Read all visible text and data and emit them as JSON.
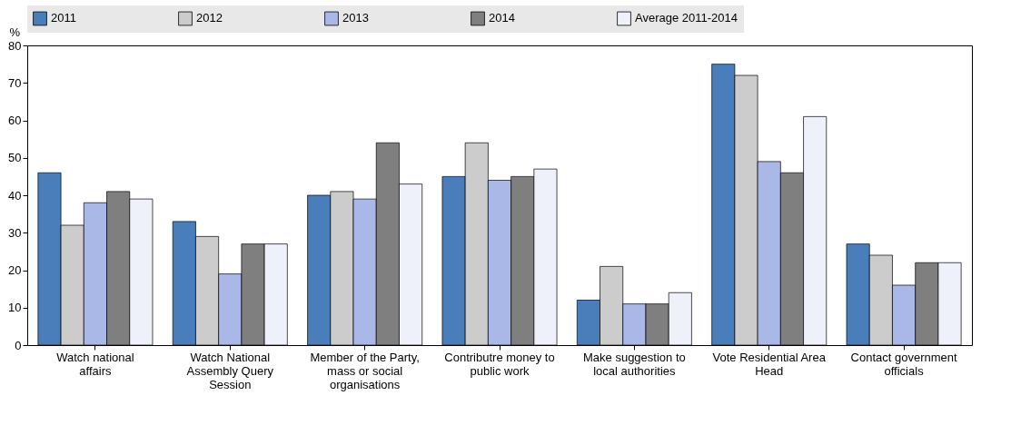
{
  "chart_data": {
    "type": "bar",
    "ylabel": "%",
    "categories": [
      "Watch national affairs",
      "Watch National Assembly Query Session",
      "Member of the Party, mass or social organisations",
      "Contributre money to public work",
      "Make suggestion to local authorities",
      "Vote Residential Area Head",
      "Contact government officials"
    ],
    "series": [
      {
        "name": "2011",
        "color": "#4a7ebb",
        "values": [
          46,
          33,
          40,
          45,
          12,
          75,
          27
        ]
      },
      {
        "name": "2012",
        "color": "#cccccc",
        "values": [
          32,
          29,
          41,
          54,
          21,
          72,
          24
        ]
      },
      {
        "name": "2013",
        "color": "#a9b8e6",
        "values": [
          38,
          19,
          39,
          44,
          11,
          49,
          16
        ]
      },
      {
        "name": "2014",
        "color": "#7f7f7f",
        "values": [
          41,
          27,
          54,
          45,
          11,
          46,
          22
        ]
      },
      {
        "name": "Average 2011-2014",
        "color": "#eef0fa",
        "values": [
          39,
          27,
          43,
          47,
          14,
          61,
          22
        ]
      }
    ],
    "ylim": [
      0,
      80
    ],
    "yticks": [
      0,
      10,
      20,
      30,
      40,
      50,
      60,
      70,
      80
    ],
    "grid": false,
    "legend": "top"
  }
}
